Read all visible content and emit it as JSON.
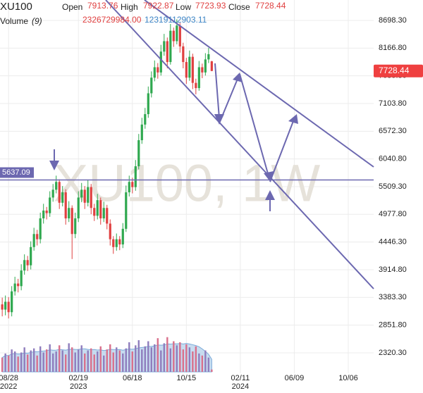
{
  "chart_data": {
    "type": "candlestick",
    "symbol": "XU100",
    "watermark": "XU100, 1W",
    "header_labels": {
      "open": "Open",
      "high": "High",
      "low": "Low",
      "close": "Close",
      "volume": "Volume",
      "volume_period": "(9)"
    },
    "volume_last": {
      "value": 2326729984,
      "label": "2326729984.00"
    },
    "volume_ma_last": {
      "value": 12319112903.11,
      "label": "12319112903.11"
    },
    "up_color": "#2fa84f",
    "down_color": "#e04040",
    "volume_up_color": "#8f7dbd",
    "volume_down_color": "#d9708c",
    "volume_ma_color": "#b9d3ec",
    "hline": {
      "value": 5637.09,
      "label": "5637.09",
      "color": "#6c68b0"
    },
    "open": [
      3250,
      3150,
      3300,
      3100,
      3500,
      3650,
      3600,
      3900,
      4100,
      4000,
      4350,
      4600,
      4500,
      4900,
      5050,
      5000,
      5300,
      5450,
      5600,
      5200,
      5400,
      4900,
      5100,
      4600,
      4900,
      5300,
      5450,
      5200,
      5500,
      5100,
      4950,
      5250,
      4900,
      5100,
      4800,
      4500,
      4350,
      4500,
      4400,
      4700,
      5400,
      5600,
      5500,
      5900,
      6400,
      6700,
      6900,
      7300,
      7600,
      7800,
      7700,
      8100,
      8300,
      7900,
      8500,
      8300,
      8600,
      8200,
      7900,
      7600,
      8000,
      7500,
      7400,
      7800,
      7700,
      7950,
      7913.76
    ],
    "high": [
      3380,
      3420,
      3390,
      3600,
      3780,
      3740,
      4020,
      4210,
      4180,
      4460,
      4720,
      4680,
      5010,
      5180,
      5120,
      5420,
      5560,
      5720,
      5650,
      5520,
      5460,
      5230,
      5150,
      5010,
      5420,
      5580,
      5520,
      5640,
      5560,
      5180,
      5370,
      5300,
      5220,
      5160,
      4880,
      4560,
      4610,
      4560,
      4810,
      5530,
      5720,
      5680,
      6020,
      6520,
      6830,
      7020,
      7430,
      7720,
      7930,
      7880,
      8230,
      8440,
      8370,
      8630,
      8560,
      8720,
      8650,
      8270,
      7980,
      8120,
      8060,
      7580,
      7920,
      7870,
      8070,
      8170,
      7922.87
    ],
    "low": [
      3020,
      3040,
      2980,
      3020,
      3420,
      3480,
      3520,
      3820,
      3890,
      3920,
      4280,
      4380,
      4420,
      4800,
      4880,
      4930,
      5220,
      5380,
      5080,
      5130,
      4780,
      4830,
      4120,
      4520,
      4830,
      5210,
      5080,
      5130,
      4980,
      4850,
      4880,
      4780,
      4830,
      4690,
      4380,
      4220,
      4280,
      4290,
      4330,
      4640,
      5320,
      5380,
      5430,
      5840,
      6330,
      6620,
      6830,
      7220,
      7530,
      7580,
      7640,
      8020,
      7780,
      7850,
      8190,
      8240,
      8080,
      7780,
      7480,
      7540,
      7380,
      7280,
      7350,
      7590,
      7640,
      7880,
      7723.93
    ],
    "close": [
      3150,
      3300,
      3100,
      3500,
      3650,
      3600,
      3900,
      4100,
      4000,
      4350,
      4600,
      4500,
      4900,
      5050,
      5000,
      5300,
      5450,
      5600,
      5200,
      5400,
      4900,
      5100,
      4600,
      4900,
      5300,
      5450,
      5200,
      5500,
      5100,
      4950,
      5250,
      4900,
      5100,
      4800,
      4500,
      4350,
      4500,
      4400,
      4700,
      5400,
      5600,
      5500,
      5900,
      6400,
      6700,
      6900,
      7300,
      7600,
      7800,
      7700,
      8100,
      8300,
      7900,
      8500,
      8300,
      8600,
      8200,
      7900,
      7600,
      8000,
      7500,
      7400,
      7800,
      7700,
      7950,
      8050,
      7728.44
    ],
    "volume": [
      14000000000.0,
      18000000000.0,
      16000000000.0,
      22000000000.0,
      20000000000.0,
      15000000000.0,
      19000000000.0,
      24000000000.0,
      17000000000.0,
      21000000000.0,
      23000000000.0,
      16000000000.0,
      25000000000.0,
      19000000000.0,
      22000000000.0,
      27000000000.0,
      18000000000.0,
      20000000000.0,
      26000000000.0,
      21000000000.0,
      17000000000.0,
      28000000000.0,
      24000000000.0,
      19000000000.0,
      22000000000.0,
      26000000000.0,
      18000000000.0,
      21000000000.0,
      23000000000.0,
      17000000000.0,
      20000000000.0,
      25000000000.0,
      16000000000.0,
      22000000000.0,
      27000000000.0,
      19000000000.0,
      24000000000.0,
      21000000000.0,
      18000000000.0,
      23000000000.0,
      29000000000.0,
      20000000000.0,
      26000000000.0,
      31000000000.0,
      22000000000.0,
      25000000000.0,
      30000000000.0,
      24000000000.0,
      27000000000.0,
      33000000000.0,
      21000000000.0,
      28000000000.0,
      34000000000.0,
      23000000000.0,
      30000000000.0,
      26000000000.0,
      29000000000.0,
      22000000000.0,
      27000000000.0,
      24000000000.0,
      20000000000.0,
      25000000000.0,
      18000000000.0,
      16000000000.0,
      21000000000.0,
      14000000000.0,
      2326729984
    ],
    "volume_ma": [
      14000000000.0,
      16000000000.0,
      16000000000.0,
      17500000000.0,
      18000000000.0,
      17500000000.0,
      17700000000.0,
      18500000000.0,
      18300000000.0,
      19100000000.0,
      19700000000.0,
      19700000000.0,
      20200000000.0,
      20400000000.0,
      20700000000.0,
      21600000000.0,
      21200000000.0,
      21300000000.0,
      22000000000.0,
      21600000000.0,
      21300000000.0,
      22000000000.0,
      22200000000.0,
      22000000000.0,
      21900000000.0,
      22600000000.0,
      22600000000.0,
      22000000000.0,
      21700000000.0,
      21900000000.0,
      21400000000.0,
      21600000000.0,
      20900000000.0,
      21300000000.0,
      22100000000.0,
      21900000000.0,
      21800000000.0,
      21900000000.0,
      21200000000.0,
      21900000000.0,
      22500000000.0,
      22100000000.0,
      22700000000.0,
      23500000000.0,
      23900000000.0,
      24200000000.0,
      24900000000.0,
      25000000000.0,
      25400000000.0,
      26400000000.0,
      26100000000.0,
      26400000000.0,
      27300000000.0,
      27200000000.0,
      27600000000.0,
      27400000000.0,
      27800000000.0,
      27300000000.0,
      27800000000.0,
      27300000000.0,
      26600000000.0,
      25800000000.0,
      24600000000.0,
      22500000000.0,
      20100000000.0,
      17200000000.0,
      12319112903.11
    ],
    "ylim": [
      1928,
      9090
    ],
    "yticks": [
      {
        "value": 2320.3,
        "label": "2320.30"
      },
      {
        "value": 2851.8,
        "label": "2851.80"
      },
      {
        "value": 3383.3,
        "label": "3383.30"
      },
      {
        "value": 3914.8,
        "label": "3914.80"
      },
      {
        "value": 4446.3,
        "label": "4446.30"
      },
      {
        "value": 4977.8,
        "label": "4977.80"
      },
      {
        "value": 5509.3,
        "label": "5509.30"
      },
      {
        "value": 6040.8,
        "label": "6040.80"
      },
      {
        "value": 6572.3,
        "label": "6572.30"
      },
      {
        "value": 7103.8,
        "label": "7103.80"
      },
      {
        "value": 7635.3,
        "label": "7635.30"
      },
      {
        "value": 8166.8,
        "label": "8166.80"
      },
      {
        "value": 8698.3,
        "label": "8698.30"
      }
    ],
    "xlim": [
      -0.7,
      117
    ],
    "xticks": [
      {
        "value": 2,
        "label": "08/28"
      },
      {
        "value": 24,
        "label": "02/19"
      },
      {
        "value": 41,
        "label": "06/18"
      },
      {
        "value": 58,
        "label": "10/15"
      },
      {
        "value": 75,
        "label": "02/11"
      },
      {
        "value": 92,
        "label": "06/09"
      },
      {
        "value": 109,
        "label": "10/06"
      }
    ],
    "x_year_labels": [
      {
        "value": 2,
        "label": "2022"
      },
      {
        "value": 24,
        "label": "2023"
      },
      {
        "value": 75,
        "label": "2024"
      }
    ],
    "volume_ylim": [
      0,
      40000000000.0
    ],
    "grid": true
  }
}
